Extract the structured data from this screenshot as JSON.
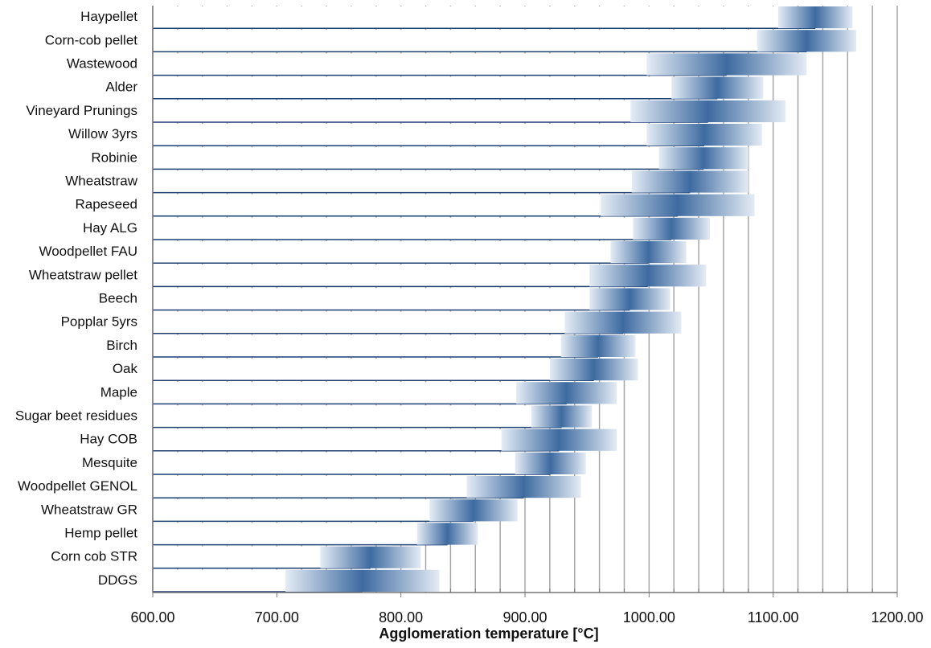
{
  "chart_data": {
    "type": "range_bar",
    "x_label": "Agglomeration temperature [°C]",
    "categories": [
      "Haypellet",
      "Corn-cob pellet",
      "Wastewood",
      "Alder",
      "Vineyard Prunings",
      "Willow 3yrs",
      "Robinie",
      "Wheatstraw",
      "Rapeseed",
      "Hay ALG",
      "Woodpellet FAU",
      "Wheatstraw pellet",
      "Beech",
      "Popplar 5yrs",
      "Birch",
      "Oak",
      "Maple",
      "Sugar beet residues",
      "Hay COB",
      "Mesquite",
      "Woodpellet GENOL",
      "Wheatstraw GR",
      "Hemp pellet",
      "Corn cob STR",
      "DDGS"
    ],
    "low": [
      1104,
      1087,
      998,
      1018,
      985,
      998,
      1008,
      986,
      961,
      987,
      969,
      952,
      952,
      932,
      929,
      920,
      893,
      905,
      881,
      892,
      853,
      823,
      813,
      735,
      707
    ],
    "high": [
      1164,
      1167,
      1127,
      1092,
      1110,
      1091,
      1080,
      1080,
      1085,
      1049,
      1030,
      1046,
      1017,
      1026,
      989,
      991,
      974,
      954,
      974,
      949,
      945,
      894,
      862,
      816,
      831
    ],
    "color": "#3d6aa0",
    "xlim": [
      600,
      1200
    ],
    "xticks": [
      {
        "value": 600,
        "label": "600.00"
      },
      {
        "value": 700,
        "label": "700.00"
      },
      {
        "value": 800,
        "label": "800.00"
      },
      {
        "value": 900,
        "label": "900.00"
      },
      {
        "value": 1000,
        "label": "1000.00"
      },
      {
        "value": 1100,
        "label": "1100.00"
      },
      {
        "value": 1200,
        "label": "1200.00"
      }
    ],
    "minor_xticks": [
      620,
      640,
      660,
      680,
      720,
      740,
      760,
      780,
      820,
      840,
      860,
      880,
      920,
      940,
      960,
      980,
      1020,
      1040,
      1060,
      1080,
      1120,
      1140,
      1160,
      1180
    ],
    "grid": true
  }
}
